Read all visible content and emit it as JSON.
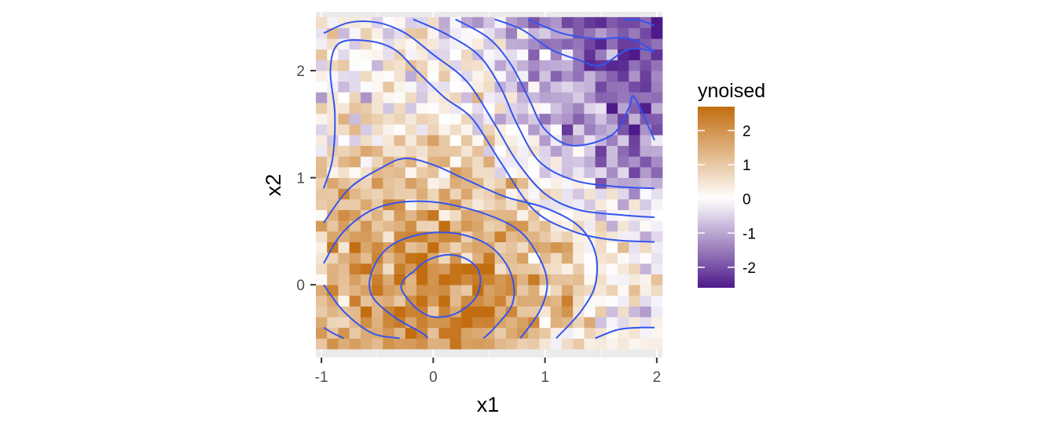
{
  "chart_data": {
    "type": "heatmap",
    "title": "",
    "xlabel": "x1",
    "ylabel": "x2",
    "xlim": [
      -1.05,
      2.05
    ],
    "ylim": [
      -0.68,
      2.55
    ],
    "x_ticks": [
      -1,
      0,
      1,
      2
    ],
    "x_tick_labels": [
      "-1",
      "0",
      "1",
      "2"
    ],
    "y_ticks": [
      0,
      1,
      2
    ],
    "y_tick_labels": [
      "0",
      "1",
      "2"
    ],
    "tile_grid": {
      "x_range": [
        -1,
        2
      ],
      "y_range": [
        -0.55,
        2.45
      ],
      "nx": 31,
      "ny": 31,
      "cell_width": 0.1,
      "cell_height": 0.1
    },
    "fill_function": "ynoised ≈ 2.4·exp(-(x1² + x2²)/1.8) − 2.0·(1 − exp(-max(x1,0)²/1.2))·(1 − exp(-max(x2,0)²/1.5)) − 0.2 + noise",
    "legend": {
      "title": "ynoised",
      "position": "right",
      "range": [
        -2.6,
        2.7
      ],
      "ticks": [
        2,
        1,
        0,
        -1,
        -2
      ],
      "tick_labels": [
        "2",
        "1",
        "0",
        "-1",
        "-2"
      ],
      "colors": {
        "low": "#4e1a8a",
        "mid": "#ffffff",
        "high": "#c26d0f"
      }
    },
    "contours": {
      "color": "#3355ee",
      "lines": [
        [
          [
            -0.18,
            0.12
          ],
          [
            -0.05,
            0.23
          ],
          [
            0.15,
            0.28
          ],
          [
            0.33,
            0.22
          ],
          [
            0.42,
            0.08
          ],
          [
            0.38,
            -0.12
          ],
          [
            0.2,
            -0.27
          ],
          [
            0.0,
            -0.3
          ],
          [
            -0.15,
            -0.22
          ],
          [
            -0.28,
            -0.05
          ],
          [
            -0.26,
            0.05
          ],
          [
            -0.18,
            0.12
          ]
        ],
        [
          [
            0.45,
            -0.5
          ],
          [
            0.55,
            -0.4
          ],
          [
            0.7,
            -0.2
          ],
          [
            0.72,
            0.0
          ],
          [
            0.65,
            0.2
          ],
          [
            0.48,
            0.38
          ],
          [
            0.2,
            0.48
          ],
          [
            -0.12,
            0.47
          ],
          [
            -0.4,
            0.35
          ],
          [
            -0.55,
            0.12
          ],
          [
            -0.55,
            -0.1
          ],
          [
            -0.35,
            -0.3
          ],
          [
            -0.1,
            -0.45
          ],
          [
            -0.05,
            -0.5
          ]
        ],
        [
          [
            -0.98,
            0.2
          ],
          [
            -0.8,
            0.5
          ],
          [
            -0.5,
            0.72
          ],
          [
            -0.1,
            0.78
          ],
          [
            0.35,
            0.7
          ],
          [
            0.75,
            0.52
          ],
          [
            0.95,
            0.25
          ],
          [
            1.02,
            0.0
          ],
          [
            0.95,
            -0.25
          ],
          [
            0.78,
            -0.5
          ]
        ],
        [
          [
            -0.98,
            0.58
          ],
          [
            -0.75,
            0.9
          ],
          [
            -0.45,
            1.1
          ],
          [
            -0.25,
            1.18
          ],
          [
            0.0,
            1.12
          ],
          [
            0.3,
            0.98
          ],
          [
            0.65,
            0.82
          ],
          [
            1.0,
            0.72
          ],
          [
            1.3,
            0.55
          ],
          [
            1.45,
            0.3
          ],
          [
            1.45,
            0.0
          ],
          [
            1.32,
            -0.25
          ],
          [
            1.1,
            -0.5
          ]
        ],
        [
          [
            -0.98,
            0.9
          ],
          [
            -0.9,
            1.18
          ],
          [
            -0.88,
            1.6
          ],
          [
            -0.92,
            2.0
          ],
          [
            -0.85,
            2.25
          ],
          [
            -0.6,
            2.28
          ],
          [
            -0.35,
            2.2
          ],
          [
            -0.15,
            2.0
          ],
          [
            0.1,
            1.75
          ],
          [
            0.35,
            1.55
          ],
          [
            0.6,
            1.15
          ],
          [
            0.9,
            0.7
          ],
          [
            1.25,
            0.5
          ],
          [
            1.6,
            0.42
          ],
          [
            1.98,
            0.4
          ]
        ],
        [
          [
            -0.98,
            2.35
          ],
          [
            -0.75,
            2.45
          ],
          [
            -0.5,
            2.45
          ],
          [
            -0.25,
            2.35
          ],
          [
            0.0,
            2.15
          ],
          [
            0.3,
            1.9
          ],
          [
            0.55,
            1.5
          ],
          [
            0.75,
            1.15
          ],
          [
            1.0,
            0.85
          ],
          [
            1.3,
            0.7
          ],
          [
            1.7,
            0.65
          ],
          [
            1.98,
            0.63
          ]
        ],
        [
          [
            -0.18,
            2.48
          ],
          [
            0.1,
            2.35
          ],
          [
            0.4,
            2.15
          ],
          [
            0.6,
            1.85
          ],
          [
            0.75,
            1.5
          ],
          [
            0.95,
            1.15
          ],
          [
            1.25,
            0.98
          ],
          [
            1.6,
            0.92
          ],
          [
            1.98,
            0.9
          ]
        ],
        [
          [
            0.2,
            2.48
          ],
          [
            0.5,
            2.3
          ],
          [
            0.7,
            2.05
          ],
          [
            0.85,
            1.75
          ],
          [
            1.0,
            1.45
          ],
          [
            1.25,
            1.3
          ],
          [
            1.6,
            1.4
          ],
          [
            1.75,
            1.65
          ],
          [
            1.8,
            1.75
          ],
          [
            1.98,
            1.35
          ]
        ],
        [
          [
            0.55,
            2.48
          ],
          [
            0.8,
            2.38
          ],
          [
            1.05,
            2.2
          ],
          [
            1.3,
            2.1
          ],
          [
            1.5,
            2.05
          ],
          [
            1.75,
            2.2
          ],
          [
            1.98,
            2.18
          ]
        ],
        [
          [
            0.85,
            2.48
          ],
          [
            1.15,
            2.35
          ],
          [
            1.45,
            2.3
          ],
          [
            1.75,
            2.3
          ],
          [
            1.98,
            2.18
          ]
        ],
        [
          [
            1.7,
            2.48
          ],
          [
            1.85,
            2.47
          ],
          [
            1.98,
            2.42
          ]
        ],
        [
          [
            -0.98,
            -0.4
          ],
          [
            -0.9,
            -0.45
          ],
          [
            -0.8,
            -0.5
          ]
        ],
        [
          [
            -0.98,
            0.0
          ],
          [
            -0.8,
            -0.25
          ],
          [
            -0.55,
            -0.45
          ],
          [
            -0.3,
            -0.5
          ]
        ],
        [
          [
            1.45,
            -0.5
          ],
          [
            1.65,
            -0.42
          ],
          [
            1.85,
            -0.4
          ],
          [
            1.98,
            -0.4
          ]
        ]
      ]
    }
  }
}
